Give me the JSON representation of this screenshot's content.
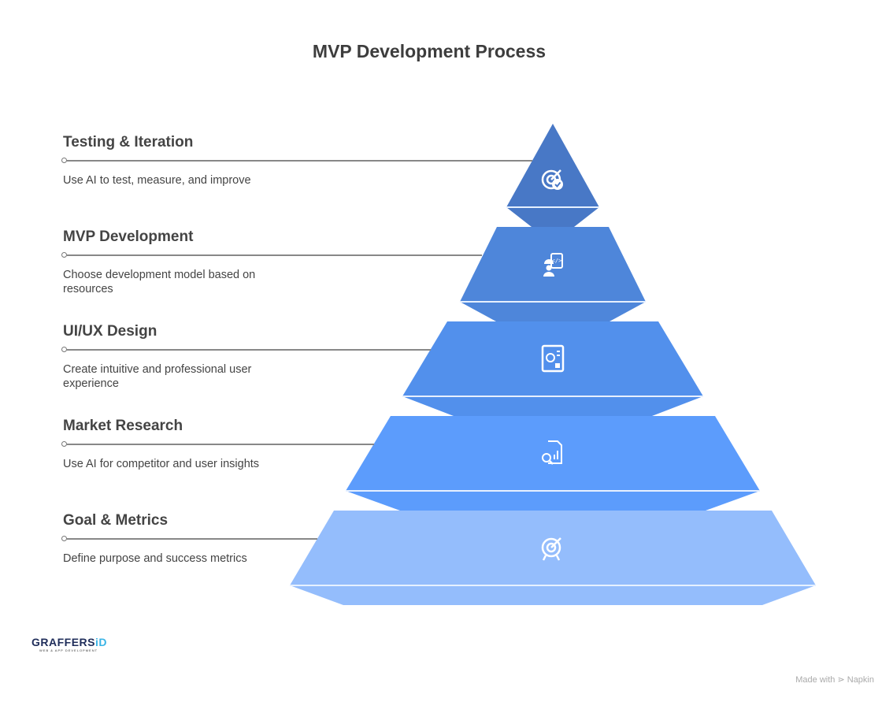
{
  "title": "MVP Development Process",
  "steps": [
    {
      "title": "Testing & Iteration",
      "desc": "Use AI to test, measure, and improve",
      "icon": "target-check-icon",
      "color": "#4878c6"
    },
    {
      "title": "MVP Development",
      "desc": "Choose development model based on resources",
      "icon": "developer-code-icon",
      "color": "#4e86da"
    },
    {
      "title": "UI/UX Design",
      "desc": "Create intuitive and professional user experience",
      "icon": "design-screen-icon",
      "color": "#5290ec"
    },
    {
      "title": "Market Research",
      "desc": "Use AI for competitor and user insights",
      "icon": "document-search-chart-icon",
      "color": "#5c9cfc"
    },
    {
      "title": "Goal & Metrics",
      "desc": "Define purpose and success metrics",
      "icon": "target-arrow-icon",
      "color": "#94bdfc"
    }
  ],
  "logo": {
    "name": "GRAFFERSID",
    "tagline": "WEB & APP DEVELOPMENT"
  },
  "footer": {
    "made_with": "Made with",
    "brand": "Napkin"
  }
}
